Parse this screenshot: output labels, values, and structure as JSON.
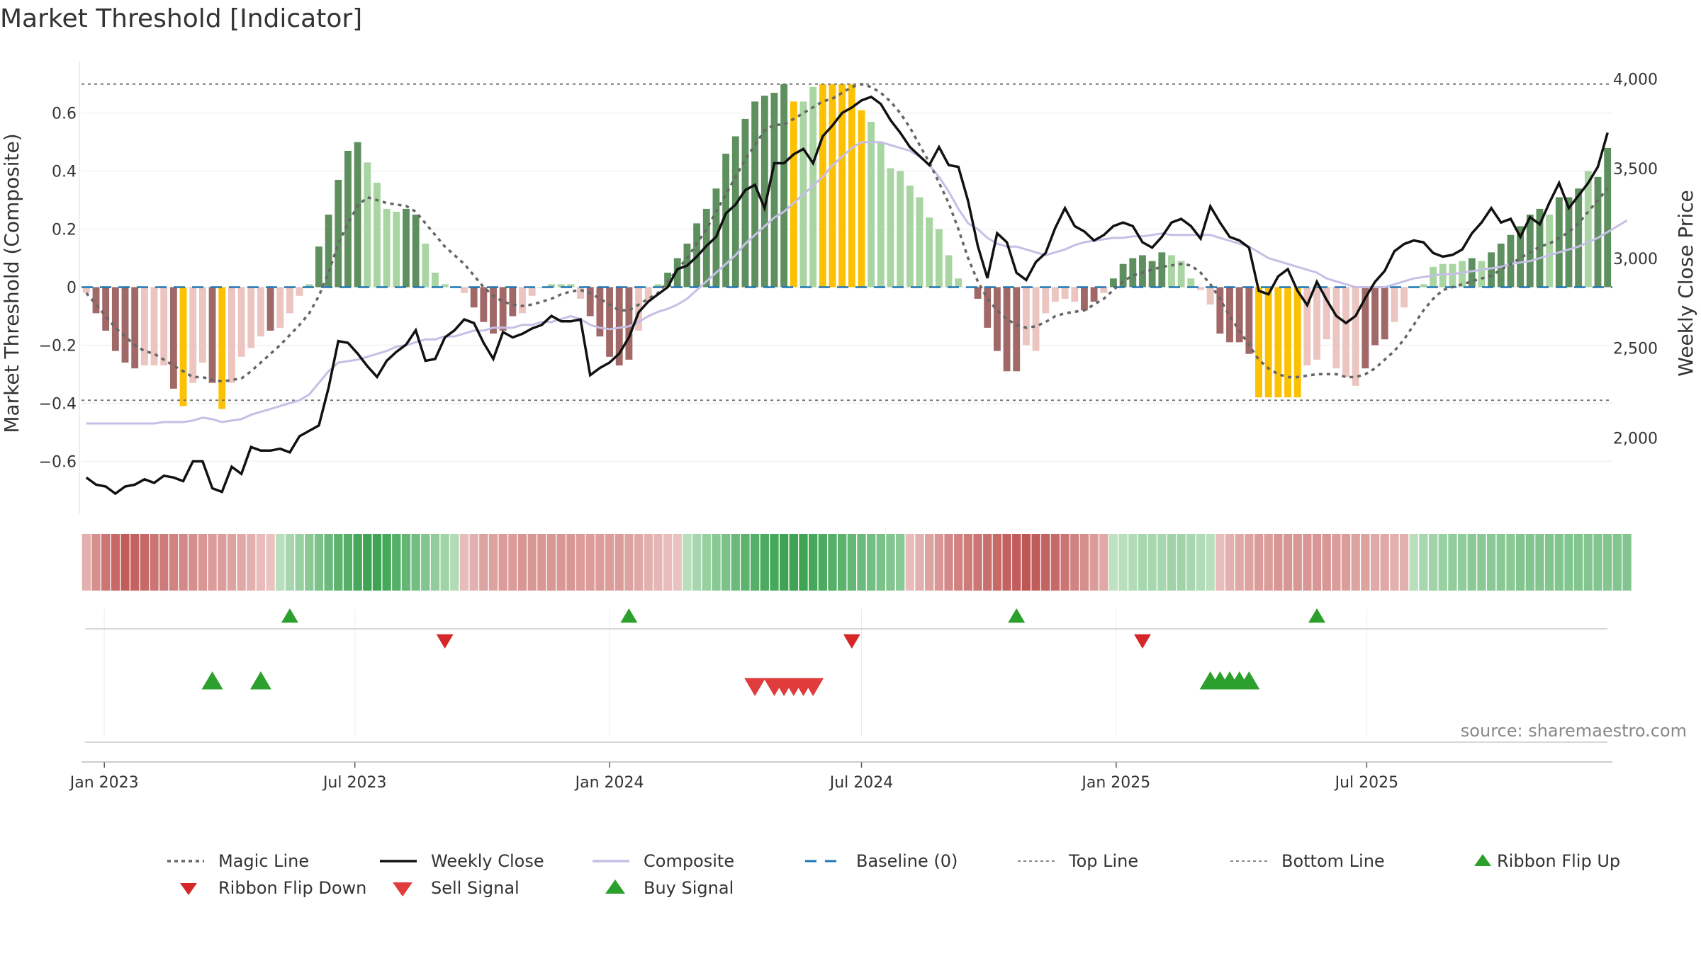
{
  "title": "Market Threshold [Indicator]",
  "source": "source: sharemaestro.com",
  "colors": {
    "pos_dark": "#5e8f5e",
    "pos_light": "#a8d5a2",
    "neg_dark": "#a06866",
    "neg_light": "#ecc4c0",
    "extreme": "#fbc102",
    "close": "#111111",
    "composite": "#c5bfe6",
    "magic": "#666666",
    "baseline": "#1f77b4",
    "buy": "#2ca02c",
    "sell": "#d62728"
  },
  "chart_data": {
    "type": "bar",
    "title": "Market Threshold [Indicator]",
    "xlabel": "",
    "ylabel": "Market Threshold (Composite)",
    "ylabel_right": "Weekly Close Price",
    "ylim": [
      -0.78,
      0.78
    ],
    "ylim_right": [
      1580,
      4100
    ],
    "yticks": [
      -0.6,
      -0.4,
      -0.2,
      0,
      0.2,
      0.4,
      0.6
    ],
    "ytick_labels": [
      "−0.6",
      "−0.4",
      "−0.2",
      "0",
      "0.2",
      "0.4",
      "0.6"
    ],
    "yticks_right": [
      2000,
      2500,
      3000,
      3500,
      4000
    ],
    "ytick_labels_right": [
      "2,000",
      "2,500",
      "3,000",
      "3,500",
      "4,000"
    ],
    "x_ticks": [
      {
        "date": "2023-01-01",
        "label": "Jan 2023"
      },
      {
        "date": "2023-07-01",
        "label": "Jul 2023"
      },
      {
        "date": "2024-01-01",
        "label": "Jan 2024"
      },
      {
        "date": "2024-07-01",
        "label": "Jul 2024"
      },
      {
        "date": "2025-01-01",
        "label": "Jan 2025"
      },
      {
        "date": "2025-07-01",
        "label": "Jul 2025"
      }
    ],
    "start_date": "2022-12-19",
    "top_line": 0.7,
    "bottom_line": -0.39,
    "grid": true,
    "legend_position": "bottom",
    "legend": [
      "Magic Line",
      "Weekly Close",
      "Composite",
      "Baseline (0)",
      "Top Line",
      "Bottom Line",
      "Ribbon Flip Up",
      "Ribbon Flip Down",
      "Sell Signal",
      "Buy Signal"
    ],
    "bars": [
      -0.02,
      -0.09,
      -0.15,
      -0.22,
      -0.26,
      -0.28,
      -0.27,
      -0.27,
      -0.27,
      -0.35,
      -0.41,
      -0.33,
      -0.26,
      -0.33,
      -0.42,
      -0.33,
      -0.24,
      -0.21,
      -0.17,
      -0.15,
      -0.14,
      -0.09,
      -0.03,
      0.01,
      0.14,
      0.25,
      0.37,
      0.47,
      0.5,
      0.43,
      0.36,
      0.27,
      0.26,
      0.27,
      0.25,
      0.15,
      0.05,
      0.01,
      0,
      -0.02,
      -0.07,
      -0.12,
      -0.16,
      -0.15,
      -0.1,
      -0.09,
      -0.03,
      0,
      0.01,
      0.01,
      0.01,
      -0.04,
      -0.1,
      -0.17,
      -0.24,
      -0.27,
      -0.25,
      -0.15,
      -0.05,
      0.01,
      0.05,
      0.1,
      0.15,
      0.22,
      0.27,
      0.34,
      0.46,
      0.52,
      0.58,
      0.64,
      0.66,
      0.67,
      0.7,
      0.64,
      0.64,
      0.69,
      0.7,
      0.7,
      0.7,
      0.7,
      0.61,
      0.57,
      0.5,
      0.41,
      0.4,
      0.35,
      0.31,
      0.24,
      0.2,
      0.11,
      0.03,
      0,
      -0.04,
      -0.14,
      -0.22,
      -0.29,
      -0.29,
      -0.2,
      -0.22,
      -0.09,
      -0.05,
      -0.04,
      -0.05,
      -0.08,
      -0.05,
      -0.02,
      0.03,
      0.08,
      0.1,
      0.11,
      0.09,
      0.12,
      0.11,
      0.09,
      0.03,
      -0.01,
      -0.06,
      -0.16,
      -0.19,
      -0.19,
      -0.23,
      -0.38,
      -0.38,
      -0.38,
      -0.38,
      -0.38,
      -0.27,
      -0.25,
      -0.18,
      -0.28,
      -0.31,
      -0.34,
      -0.28,
      -0.2,
      -0.18,
      -0.12,
      -0.07,
      0,
      0.01,
      0.07,
      0.08,
      0.08,
      0.09,
      0.1,
      0.09,
      0.12,
      0.15,
      0.18,
      0.21,
      0.25,
      0.27,
      0.25,
      0.31,
      0.31,
      0.34,
      0.4,
      0.38,
      0.48
    ],
    "extreme_bars": [
      10,
      14,
      73,
      76,
      77,
      78,
      79,
      80,
      121,
      122,
      123,
      124,
      125
    ],
    "dark_bars": [
      1,
      2,
      3,
      4,
      5,
      9,
      10,
      13,
      14,
      19,
      24,
      25,
      26,
      27,
      28,
      33,
      34,
      40,
      41,
      42,
      43,
      44,
      52,
      53,
      54,
      55,
      56,
      60,
      61,
      62,
      63,
      64,
      65,
      66,
      67,
      68,
      69,
      70,
      71,
      72,
      92,
      93,
      94,
      95,
      96,
      103,
      104,
      106,
      107,
      108,
      109,
      110,
      111,
      117,
      118,
      119,
      120,
      121,
      132,
      133,
      134,
      143,
      145,
      146,
      147,
      148,
      149,
      150,
      152,
      153,
      154,
      156,
      157,
      158
    ],
    "weekly_close": [
      1780,
      1740,
      1730,
      1690,
      1730,
      1740,
      1770,
      1750,
      1790,
      1780,
      1760,
      1870,
      1870,
      1720,
      1700,
      1840,
      1800,
      1950,
      1930,
      1930,
      1940,
      1920,
      2010,
      2040,
      2070,
      2280,
      2540,
      2530,
      2470,
      2400,
      2340,
      2430,
      2480,
      2520,
      2600,
      2430,
      2440,
      2560,
      2600,
      2660,
      2640,
      2530,
      2440,
      2590,
      2560,
      2580,
      2610,
      2630,
      2680,
      2650,
      2650,
      2660,
      2350,
      2390,
      2420,
      2470,
      2560,
      2700,
      2760,
      2800,
      2840,
      2940,
      2960,
      3010,
      3070,
      3120,
      3250,
      3300,
      3380,
      3410,
      3280,
      3530,
      3530,
      3580,
      3610,
      3530,
      3680,
      3740,
      3810,
      3840,
      3880,
      3900,
      3860,
      3770,
      3700,
      3620,
      3570,
      3520,
      3620,
      3520,
      3510,
      3320,
      3070,
      2890,
      3140,
      3090,
      2920,
      2880,
      2980,
      3030,
      3170,
      3280,
      3180,
      3150,
      3100,
      3130,
      3180,
      3200,
      3180,
      3090,
      3060,
      3120,
      3200,
      3220,
      3180,
      3110,
      3290,
      3200,
      3120,
      3100,
      3060,
      2820,
      2800,
      2900,
      2940,
      2820,
      2740,
      2870,
      2770,
      2680,
      2640,
      2680,
      2780,
      2870,
      2930,
      3040,
      3080,
      3100,
      3090,
      3030,
      3010,
      3020,
      3050,
      3140,
      3200,
      3280,
      3200,
      3220,
      3120,
      3230,
      3190,
      3310,
      3420,
      3280,
      3350,
      3420,
      3510,
      3700
    ],
    "composite": [
      -0.47,
      -0.47,
      -0.47,
      -0.47,
      -0.47,
      -0.47,
      -0.47,
      -0.47,
      -0.465,
      -0.465,
      -0.465,
      -0.46,
      -0.45,
      -0.455,
      -0.465,
      -0.46,
      -0.455,
      -0.44,
      -0.43,
      -0.42,
      -0.41,
      -0.4,
      -0.39,
      -0.37,
      -0.33,
      -0.29,
      -0.26,
      -0.255,
      -0.25,
      -0.24,
      -0.23,
      -0.22,
      -0.205,
      -0.2,
      -0.19,
      -0.18,
      -0.18,
      -0.17,
      -0.17,
      -0.16,
      -0.15,
      -0.15,
      -0.14,
      -0.14,
      -0.14,
      -0.13,
      -0.13,
      -0.12,
      -0.12,
      -0.11,
      -0.1,
      -0.11,
      -0.13,
      -0.14,
      -0.145,
      -0.14,
      -0.135,
      -0.12,
      -0.1,
      -0.085,
      -0.075,
      -0.06,
      -0.04,
      -0.01,
      0.02,
      0.05,
      0.08,
      0.11,
      0.15,
      0.18,
      0.21,
      0.24,
      0.26,
      0.29,
      0.32,
      0.35,
      0.38,
      0.42,
      0.45,
      0.48,
      0.5,
      0.5,
      0.5,
      0.49,
      0.48,
      0.47,
      0.45,
      0.42,
      0.38,
      0.33,
      0.27,
      0.22,
      0.2,
      0.17,
      0.15,
      0.14,
      0.14,
      0.13,
      0.12,
      0.11,
      0.12,
      0.13,
      0.145,
      0.155,
      0.16,
      0.165,
      0.17,
      0.17,
      0.175,
      0.175,
      0.18,
      0.185,
      0.18,
      0.18,
      0.18,
      0.18,
      0.18,
      0.17,
      0.16,
      0.15,
      0.14,
      0.12,
      0.1,
      0.09,
      0.08,
      0.07,
      0.06,
      0.05,
      0.03,
      0.02,
      0.01,
      0,
      0,
      0,
      0,
      0.01,
      0.02,
      0.03,
      0.035,
      0.04,
      0.045,
      0.045,
      0.05,
      0.055,
      0.06,
      0.065,
      0.07,
      0.08,
      0.085,
      0.09,
      0.1,
      0.11,
      0.12,
      0.13,
      0.14,
      0.155,
      0.17,
      0.19,
      0.21,
      0.23
    ],
    "magic_line": [
      -0.02,
      -0.06,
      -0.1,
      -0.14,
      -0.17,
      -0.2,
      -0.22,
      -0.23,
      -0.25,
      -0.27,
      -0.29,
      -0.31,
      -0.31,
      -0.32,
      -0.325,
      -0.32,
      -0.315,
      -0.29,
      -0.26,
      -0.23,
      -0.2,
      -0.165,
      -0.13,
      -0.09,
      -0.03,
      0.05,
      0.15,
      0.22,
      0.28,
      0.31,
      0.3,
      0.29,
      0.285,
      0.28,
      0.26,
      0.22,
      0.18,
      0.14,
      0.11,
      0.08,
      0.04,
      0,
      -0.03,
      -0.05,
      -0.06,
      -0.065,
      -0.06,
      -0.05,
      -0.04,
      -0.025,
      -0.015,
      -0.01,
      -0.02,
      -0.04,
      -0.06,
      -0.08,
      -0.08,
      -0.06,
      -0.04,
      -0.02,
      0.02,
      0.06,
      0.1,
      0.15,
      0.2,
      0.26,
      0.32,
      0.38,
      0.44,
      0.49,
      0.54,
      0.56,
      0.56,
      0.58,
      0.6,
      0.62,
      0.64,
      0.65,
      0.67,
      0.69,
      0.7,
      0.69,
      0.67,
      0.64,
      0.6,
      0.55,
      0.49,
      0.43,
      0.36,
      0.29,
      0.2,
      0.1,
      0.02,
      -0.04,
      -0.08,
      -0.11,
      -0.13,
      -0.14,
      -0.135,
      -0.12,
      -0.1,
      -0.09,
      -0.085,
      -0.08,
      -0.06,
      -0.04,
      -0.01,
      0.02,
      0.04,
      0.05,
      0.06,
      0.07,
      0.075,
      0.08,
      0.075,
      0.05,
      0.01,
      -0.04,
      -0.1,
      -0.15,
      -0.2,
      -0.25,
      -0.28,
      -0.3,
      -0.31,
      -0.31,
      -0.305,
      -0.3,
      -0.3,
      -0.3,
      -0.31,
      -0.31,
      -0.3,
      -0.28,
      -0.25,
      -0.22,
      -0.18,
      -0.13,
      -0.08,
      -0.04,
      -0.01,
      0,
      0.01,
      0.02,
      0.03,
      0.04,
      0.06,
      0.08,
      0.1,
      0.12,
      0.14,
      0.15,
      0.17,
      0.19,
      0.22,
      0.26,
      0.3,
      0.34
    ],
    "ribbon": [
      -0.3,
      -0.55,
      -0.75,
      -0.85,
      -0.95,
      -0.9,
      -0.85,
      -0.75,
      -0.7,
      -0.65,
      -0.6,
      -0.55,
      -0.5,
      -0.45,
      -0.45,
      -0.4,
      -0.35,
      -0.3,
      -0.2,
      -0.15,
      0.2,
      0.3,
      0.4,
      0.5,
      0.6,
      0.7,
      0.8,
      0.85,
      0.95,
      1,
      1,
      0.95,
      0.85,
      0.75,
      0.65,
      0.55,
      0.45,
      0.35,
      0.25,
      -0.2,
      -0.3,
      -0.4,
      -0.4,
      -0.45,
      -0.45,
      -0.5,
      -0.5,
      -0.5,
      -0.5,
      -0.5,
      -0.5,
      -0.45,
      -0.45,
      -0.45,
      -0.45,
      -0.45,
      -0.4,
      -0.35,
      -0.3,
      -0.25,
      -0.2,
      -0.15,
      0.2,
      0.3,
      0.4,
      0.5,
      0.6,
      0.7,
      0.8,
      0.85,
      0.9,
      0.95,
      1,
      1,
      1,
      0.95,
      0.9,
      0.85,
      0.8,
      0.75,
      0.7,
      0.65,
      0.6,
      0.55,
      0.5,
      -0.2,
      -0.3,
      -0.4,
      -0.5,
      -0.6,
      -0.65,
      -0.7,
      -0.75,
      -0.8,
      -0.85,
      -0.9,
      -0.95,
      -1,
      -0.95,
      -0.9,
      -0.85,
      -0.75,
      -0.65,
      -0.55,
      -0.45,
      -0.35,
      0.15,
      0.2,
      0.25,
      0.3,
      0.3,
      0.3,
      0.35,
      0.35,
      0.3,
      0.25,
      0.2,
      -0.2,
      -0.3,
      -0.35,
      -0.4,
      -0.45,
      -0.45,
      -0.5,
      -0.5,
      -0.5,
      -0.5,
      -0.5,
      -0.5,
      -0.45,
      -0.45,
      -0.4,
      -0.4,
      -0.35,
      -0.35,
      -0.3,
      -0.3,
      0.2,
      0.3,
      0.35,
      0.4,
      0.45,
      0.45,
      0.5,
      0.5,
      0.5,
      0.5,
      0.5,
      0.55,
      0.55,
      0.55,
      0.55,
      0.55,
      0.55,
      0.55,
      0.55,
      0.55,
      0.55,
      0.55,
      0.55
    ],
    "ribbon_flip_up": [
      "2023-05-15",
      "2024-01-15",
      "2024-10-21",
      "2025-05-26"
    ],
    "ribbon_flip_down": [
      "2023-09-04",
      "2024-06-24",
      "2025-01-20"
    ],
    "buy_signals": [
      "2023-03-20",
      "2023-04-24",
      "2025-03-10",
      "2025-03-17",
      "2025-03-24",
      "2025-03-31",
      "2025-04-07"
    ],
    "sell_signals": [
      "2024-04-15",
      "2024-04-29",
      "2024-05-06",
      "2024-05-13",
      "2024-05-20",
      "2024-05-27"
    ]
  }
}
